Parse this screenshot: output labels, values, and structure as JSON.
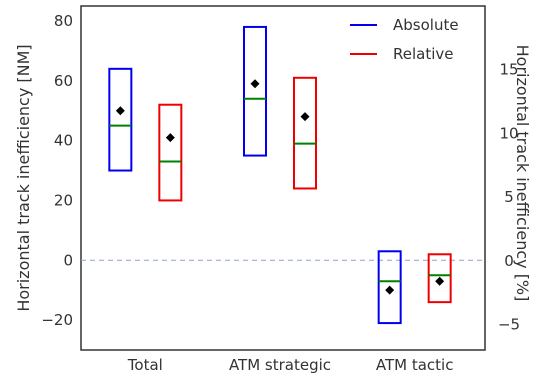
{
  "chart_data": {
    "type": "box",
    "categories": [
      "Total",
      "ATM strategic",
      "ATM tactic"
    ],
    "series": [
      {
        "name": "Absolute",
        "color": "#0000ee",
        "boxes": [
          {
            "q1": 30,
            "median": 45,
            "q3": 64,
            "mean": 50
          },
          {
            "q1": 35,
            "median": 54,
            "q3": 78,
            "mean": 59
          },
          {
            "q1": -21,
            "median": -7,
            "q3": 3,
            "mean": -10
          }
        ]
      },
      {
        "name": "Relative",
        "color": "#ee0000",
        "boxes": [
          {
            "q1": 20,
            "median": 33,
            "q3": 52,
            "mean": 41
          },
          {
            "q1": 24,
            "median": 39,
            "q3": 61,
            "mean": 48
          },
          {
            "q1": -14,
            "median": -5,
            "q3": 2,
            "mean": -7
          }
        ]
      }
    ],
    "median_color": "#008000",
    "mean_color": "#000000",
    "zero_line_color": "#8fa3cc",
    "ylabel": "Horizontal track inefficiency [NM]",
    "y2label": "Horizontal track inefficiency [%]",
    "ylim": [
      -30,
      85
    ],
    "yticks": [
      -20,
      0,
      20,
      40,
      60,
      80
    ],
    "y2lim": [
      -7.0,
      20.0
    ],
    "y2ticks": [
      -5,
      0,
      5,
      10,
      15
    ],
    "grid": false,
    "legend_position": "top-right"
  }
}
